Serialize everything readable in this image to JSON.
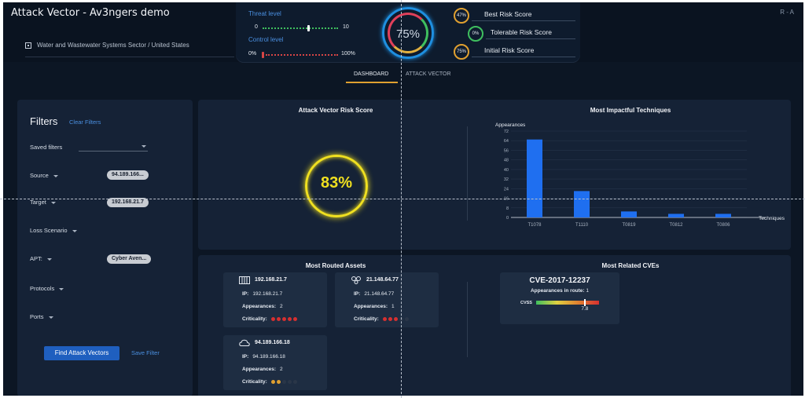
{
  "app": {
    "title": "Attack Vector - Av3ngers demo",
    "user_initials": "R - A"
  },
  "sector": {
    "value": "Water and Wastewater Systems Sector / United States",
    "icon": "building-icon"
  },
  "levels": {
    "threat": {
      "label": "Threat level",
      "min": "0",
      "max": "10",
      "value": 6,
      "scale_max": 10
    },
    "control": {
      "label": "Control level",
      "min": "0%",
      "max": "100%",
      "value": 0
    }
  },
  "gauge": {
    "value": "75%"
  },
  "scores": [
    {
      "value": "47%",
      "label": "Best Risk Score",
      "color": "#e0a030"
    },
    {
      "value": "0%",
      "label": "Tolerable Risk Score",
      "color": "#3fbf5f"
    },
    {
      "value": "75%",
      "label": "Initial Risk Score",
      "color": "#e0a030"
    }
  ],
  "tabs": [
    {
      "label": "DASHBOARD",
      "active": true
    },
    {
      "label": "ATTACK VECTOR",
      "active": false
    }
  ],
  "filters": {
    "title": "Filters",
    "clear_label": "Clear Filters",
    "items": [
      {
        "label": "Saved filters",
        "caret": false
      },
      {
        "label": "Source",
        "caret": true,
        "chip": "94.189.166..."
      },
      {
        "label": "Target",
        "caret": true,
        "chip": "192.168.21.7"
      },
      {
        "label": "Loss Scenario",
        "caret": true
      },
      {
        "label": "APT:",
        "caret": true,
        "chip": "Cyber Aven..."
      },
      {
        "label": "Protocols",
        "caret": true
      },
      {
        "label": "Ports",
        "caret": true
      }
    ],
    "find_button": "Find Attack Vectors",
    "save_label": "Save Filter"
  },
  "risk_score": {
    "title": "Attack Vector Risk Score",
    "value": "83%",
    "color": "#f0e020"
  },
  "techniques": {
    "title": "Most Impactful Techniques",
    "chart_data": {
      "type": "bar",
      "categories": [
        "T1078",
        "T1110",
        "T0819",
        "T0812",
        "T0806"
      ],
      "values": [
        65,
        22,
        5,
        3,
        3
      ],
      "xlabel": "Techniques",
      "ylabel": "Appearances",
      "ylim": [
        0,
        72
      ],
      "yticks": [
        0,
        8,
        16,
        24,
        32,
        40,
        48,
        56,
        64,
        72
      ],
      "bar_color": "#1f6ff0",
      "grid": true
    }
  },
  "assets": {
    "title": "Most Routed Assets",
    "ip_label": "IP:",
    "appearances_label": "Appearances:",
    "criticality_label": "Criticality:",
    "items": [
      {
        "name": "192.168.21.7",
        "icon": "server-icon",
        "ip": "192.168.21.7",
        "appearances": "2",
        "criticality": 5,
        "color": "#d63030"
      },
      {
        "name": "21.148.64.77",
        "icon": "network-icon",
        "ip": "21.148.64.77",
        "appearances": "1",
        "criticality": 3,
        "color": "#d63030"
      },
      {
        "name": "94.189.166.18",
        "icon": "cloud-icon",
        "ip": "94.189.166.18",
        "appearances": "2",
        "criticality": 2,
        "color": "#e0a030"
      }
    ]
  },
  "cves": {
    "title": "Most Related CVEs",
    "items": [
      {
        "id": "CVE-2017-12237",
        "appearances_label": "Appearances in route:",
        "appearances": "1",
        "cvss_label": "CVSS",
        "cvss": "7.8"
      }
    ]
  }
}
